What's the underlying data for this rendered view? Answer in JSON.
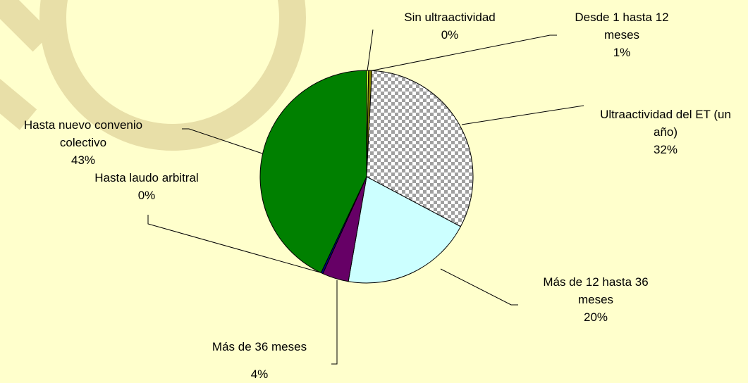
{
  "chart_data": {
    "type": "pie",
    "categories": [
      "Sin ultraactividad",
      "Desde 1 hasta 12 meses",
      "Ultraactividad del ET (un año)",
      "Más de 12 hasta  36 meses",
      "Más de 36 meses",
      "Hasta laudo arbitral",
      "Hasta nuevo convenio colectivo"
    ],
    "values": [
      0.3,
      0.5,
      32,
      20,
      4,
      0.3,
      43
    ],
    "value_labels": [
      "0%",
      "1%",
      "32%",
      "20%",
      "4%",
      "0%",
      "43%"
    ],
    "colors": [
      "#ccff33",
      "#808000",
      "#a0a0a0",
      "#ccffff",
      "#660066",
      "#000080",
      "#008000"
    ],
    "patterned": [
      false,
      false,
      true,
      false,
      false,
      false,
      false
    ]
  }
}
